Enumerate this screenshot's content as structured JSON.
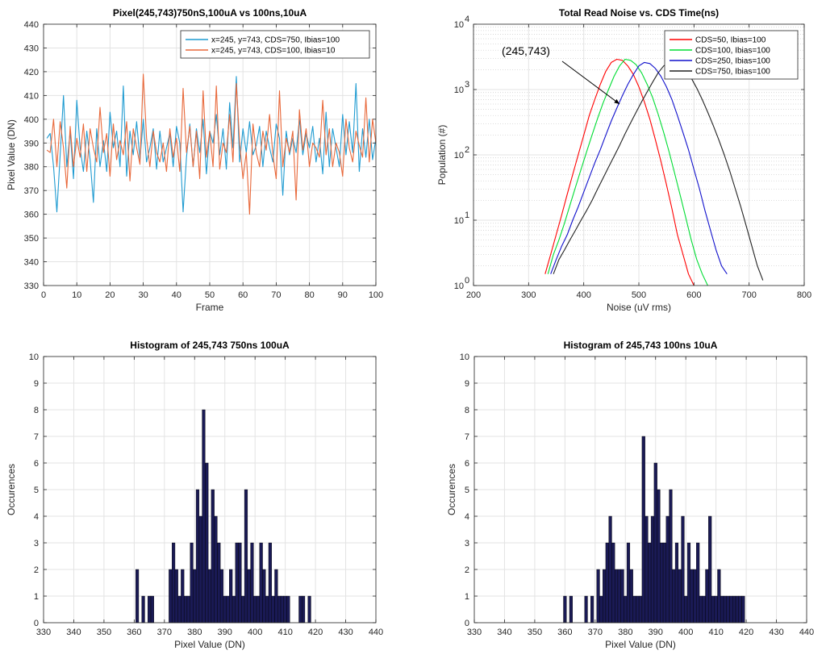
{
  "chart_data": [
    {
      "type": "line",
      "title": "Pixel(245,743)750nS,100uA vs 100ns,10uA",
      "xlabel": "Frame",
      "ylabel": "Pixel Value (DN)",
      "xlim": [
        0,
        100
      ],
      "ylim": [
        330,
        440
      ],
      "xticks": [
        0,
        10,
        20,
        30,
        40,
        50,
        60,
        70,
        80,
        90,
        100
      ],
      "yticks": [
        330,
        340,
        350,
        360,
        370,
        380,
        390,
        400,
        410,
        420,
        430,
        440
      ],
      "grid": true,
      "legend_position": "top-right",
      "series": [
        {
          "name": "x=245, y=743, CDS=750, Ibias=100",
          "color": "#1f9bd1",
          "x": [
            1,
            2,
            3,
            4,
            5,
            6,
            7,
            8,
            9,
            10,
            11,
            12,
            13,
            14,
            15,
            16,
            17,
            18,
            19,
            20,
            21,
            22,
            23,
            24,
            25,
            26,
            27,
            28,
            29,
            30,
            31,
            32,
            33,
            34,
            35,
            36,
            37,
            38,
            39,
            40,
            41,
            42,
            43,
            44,
            45,
            46,
            47,
            48,
            49,
            50,
            51,
            52,
            53,
            54,
            55,
            56,
            57,
            58,
            59,
            60,
            61,
            62,
            63,
            64,
            65,
            66,
            67,
            68,
            69,
            70,
            71,
            72,
            73,
            74,
            75,
            76,
            77,
            78,
            79,
            80,
            81,
            82,
            83,
            84,
            85,
            86,
            87,
            88,
            89,
            90,
            91,
            92,
            93,
            94,
            95,
            96,
            97,
            98,
            99,
            100
          ],
          "values": [
            392,
            394,
            380,
            361,
            385,
            410,
            380,
            395,
            375,
            408,
            388,
            378,
            395,
            383,
            365,
            396,
            380,
            391,
            378,
            403,
            388,
            395,
            380,
            414,
            376,
            395,
            385,
            399,
            383,
            400,
            382,
            388,
            396,
            379,
            395,
            382,
            388,
            394,
            380,
            397,
            390,
            361,
            384,
            398,
            380,
            396,
            386,
            400,
            377,
            395,
            390,
            402,
            385,
            396,
            379,
            407,
            388,
            418,
            382,
            396,
            386,
            399,
            385,
            389,
            397,
            380,
            395,
            388,
            382,
            398,
            392,
            368,
            395,
            385,
            392,
            386,
            400,
            385,
            394,
            388,
            397,
            382,
            392,
            377,
            403,
            380,
            396,
            388,
            380,
            402,
            385,
            399,
            386,
            415,
            378,
            396,
            384,
            400,
            383,
            392
          ]
        },
        {
          "name": "x=245, y=743, CDS=100, Ibias=10",
          "color": "#e8683a",
          "x": [
            1,
            2,
            3,
            4,
            5,
            6,
            7,
            8,
            9,
            10,
            11,
            12,
            13,
            14,
            15,
            16,
            17,
            18,
            19,
            20,
            21,
            22,
            23,
            24,
            25,
            26,
            27,
            28,
            29,
            30,
            31,
            32,
            33,
            34,
            35,
            36,
            37,
            38,
            39,
            40,
            41,
            42,
            43,
            44,
            45,
            46,
            47,
            48,
            49,
            50,
            51,
            52,
            53,
            54,
            55,
            56,
            57,
            58,
            59,
            60,
            61,
            62,
            63,
            64,
            65,
            66,
            67,
            68,
            69,
            70,
            71,
            72,
            73,
            74,
            75,
            76,
            77,
            78,
            79,
            80,
            81,
            82,
            83,
            84,
            85,
            86,
            87,
            88,
            89,
            90,
            91,
            92,
            93,
            94,
            95,
            96,
            97,
            98,
            99,
            100
          ],
          "values": [
            387,
            386,
            400,
            380,
            399,
            388,
            371,
            397,
            380,
            392,
            384,
            398,
            378,
            396,
            388,
            382,
            405,
            386,
            394,
            376,
            398,
            383,
            391,
            385,
            399,
            374,
            396,
            388,
            381,
            419,
            392,
            380,
            395,
            386,
            382,
            390,
            378,
            396,
            384,
            392,
            378,
            413,
            386,
            397,
            380,
            395,
            375,
            412,
            384,
            395,
            380,
            414,
            379,
            390,
            386,
            402,
            382,
            415,
            390,
            375,
            386,
            360,
            398,
            386,
            380,
            395,
            387,
            402,
            385,
            375,
            412,
            380,
            392,
            386,
            395,
            366,
            404,
            387,
            396,
            380,
            390,
            388,
            384,
            408,
            385,
            396,
            380,
            390,
            386,
            376,
            400,
            388,
            382,
            395,
            389,
            384,
            409,
            382,
            400,
            390
          ]
        }
      ]
    },
    {
      "type": "line",
      "title": "Total Read Noise vs. CDS Time(ns)",
      "xlabel": "Noise (uV rms)",
      "ylabel": "Population (#)",
      "xlim": [
        200,
        800
      ],
      "ylim": [
        1,
        10000
      ],
      "yscale": "log",
      "xticks": [
        200,
        300,
        400,
        500,
        600,
        700,
        800
      ],
      "yticks": [
        1,
        10,
        100,
        1000,
        10000
      ],
      "ytick_labels": [
        "10",
        "10",
        "10",
        "10",
        "10"
      ],
      "ytick_exponents": [
        "0",
        "1",
        "2",
        "3",
        "4"
      ],
      "grid": true,
      "legend_position": "top-right",
      "annotation": {
        "text": "(245,743)",
        "x": 465,
        "y": 600
      },
      "series": [
        {
          "name": "CDS=50, Ibias=100",
          "color": "#ff0000",
          "x": [
            330,
            340,
            350,
            360,
            370,
            380,
            390,
            400,
            410,
            420,
            430,
            440,
            450,
            460,
            470,
            480,
            490,
            500,
            510,
            520,
            530,
            540,
            550,
            560,
            570,
            580,
            590,
            600
          ],
          "values": [
            1.5,
            3,
            6,
            12,
            25,
            50,
            100,
            200,
            400,
            700,
            1200,
            1900,
            2600,
            2900,
            2800,
            2300,
            1700,
            1100,
            650,
            350,
            170,
            80,
            35,
            15,
            6,
            3,
            1.5,
            1
          ]
        },
        {
          "name": "CDS=100, Ibias=100",
          "color": "#00dd33",
          "x": [
            335,
            345,
            355,
            365,
            375,
            385,
            395,
            405,
            415,
            425,
            435,
            445,
            455,
            465,
            475,
            485,
            495,
            505,
            515,
            525,
            535,
            545,
            555,
            565,
            575,
            585,
            595,
            605,
            615,
            625
          ],
          "values": [
            1.5,
            3,
            5,
            9,
            17,
            32,
            60,
            110,
            200,
            360,
            620,
            1000,
            1600,
            2300,
            2900,
            2800,
            2400,
            1800,
            1200,
            750,
            420,
            220,
            110,
            52,
            24,
            11,
            5,
            2.5,
            1.5,
            1
          ]
        },
        {
          "name": "CDS=250, Ibias=100",
          "color": "#1111cc",
          "x": [
            340,
            350,
            360,
            370,
            380,
            390,
            400,
            410,
            420,
            430,
            440,
            450,
            460,
            470,
            480,
            490,
            500,
            510,
            520,
            530,
            540,
            550,
            560,
            570,
            580,
            590,
            600,
            610,
            620,
            630,
            640,
            650,
            660
          ],
          "values": [
            1.5,
            2.5,
            4,
            6,
            10,
            16,
            27,
            45,
            75,
            120,
            200,
            330,
            520,
            800,
            1200,
            1700,
            2300,
            2600,
            2500,
            2100,
            1600,
            1100,
            700,
            400,
            220,
            120,
            60,
            30,
            14,
            7,
            3.5,
            2,
            1.5
          ]
        },
        {
          "name": "CDS=750, Ibias=100",
          "color": "#222222",
          "x": [
            345,
            355,
            365,
            375,
            385,
            395,
            405,
            415,
            425,
            435,
            445,
            455,
            465,
            475,
            485,
            495,
            505,
            515,
            525,
            535,
            545,
            555,
            565,
            575,
            585,
            595,
            605,
            615,
            625,
            635,
            645,
            655,
            665,
            675,
            685,
            695,
            705,
            715,
            725
          ],
          "values": [
            1.5,
            2.5,
            3.5,
            5,
            7,
            10,
            14,
            20,
            30,
            44,
            65,
            95,
            140,
            210,
            310,
            450,
            650,
            920,
            1300,
            1800,
            2300,
            2600,
            2600,
            2400,
            2000,
            1500,
            1050,
            700,
            450,
            280,
            170,
            100,
            56,
            30,
            16,
            8,
            4,
            2,
            1.2
          ]
        }
      ]
    },
    {
      "type": "bar",
      "title": "Histogram of 245,743 750ns 100uA",
      "xlabel": "Pixel Value (DN)",
      "ylabel": "Occurences",
      "xlim": [
        330,
        440
      ],
      "ylim": [
        0,
        10
      ],
      "xticks": [
        330,
        340,
        350,
        360,
        370,
        380,
        390,
        400,
        410,
        420,
        430,
        440
      ],
      "yticks": [
        0,
        1,
        2,
        3,
        4,
        5,
        6,
        7,
        8,
        9,
        10
      ],
      "grid": true,
      "bar_color": "#1a1a55",
      "x": [
        361,
        363,
        365,
        366,
        372,
        373,
        374,
        375,
        376,
        377,
        378,
        379,
        380,
        381,
        382,
        383,
        384,
        385,
        386,
        387,
        388,
        389,
        390,
        391,
        392,
        393,
        394,
        395,
        396,
        397,
        398,
        399,
        400,
        401,
        402,
        403,
        404,
        405,
        406,
        407,
        408,
        409,
        410,
        411,
        415,
        416,
        418
      ],
      "values": [
        2,
        1,
        1,
        1,
        2,
        3,
        2,
        1,
        2,
        1,
        1,
        3,
        2,
        5,
        4,
        8,
        6,
        2,
        5,
        4,
        3,
        2,
        1,
        1,
        2,
        1,
        3,
        3,
        1,
        5,
        2,
        3,
        1,
        1,
        3,
        2,
        1,
        3,
        1,
        2,
        1,
        1,
        1,
        1,
        1,
        1,
        1
      ]
    },
    {
      "type": "bar",
      "title": "Histogram of 245,743 100ns 10uA",
      "xlabel": "Pixel Value (DN)",
      "ylabel": "Occurences",
      "xlim": [
        330,
        440
      ],
      "ylim": [
        0,
        10
      ],
      "xticks": [
        330,
        340,
        350,
        360,
        370,
        380,
        390,
        400,
        410,
        420,
        430,
        440
      ],
      "yticks": [
        0,
        1,
        2,
        3,
        4,
        5,
        6,
        7,
        8,
        9,
        10
      ],
      "grid": true,
      "bar_color": "#1a1a55",
      "x": [
        360,
        362,
        367,
        369,
        371,
        372,
        373,
        374,
        375,
        376,
        377,
        378,
        379,
        380,
        381,
        382,
        383,
        384,
        385,
        386,
        387,
        388,
        389,
        390,
        391,
        392,
        393,
        394,
        395,
        396,
        397,
        398,
        399,
        400,
        401,
        402,
        403,
        404,
        405,
        406,
        407,
        408,
        409,
        410,
        411,
        412,
        413,
        414,
        415,
        416,
        417,
        418,
        419
      ],
      "values": [
        1,
        1,
        1,
        1,
        2,
        1,
        2,
        3,
        4,
        3,
        2,
        2,
        2,
        1,
        3,
        2,
        1,
        1,
        1,
        7,
        4,
        3,
        4,
        6,
        5,
        3,
        3,
        4,
        5,
        2,
        3,
        2,
        4,
        1,
        3,
        2,
        2,
        3,
        1,
        1,
        2,
        4,
        1,
        1,
        2,
        1,
        1,
        1,
        1,
        1,
        1,
        1,
        1
      ]
    }
  ]
}
